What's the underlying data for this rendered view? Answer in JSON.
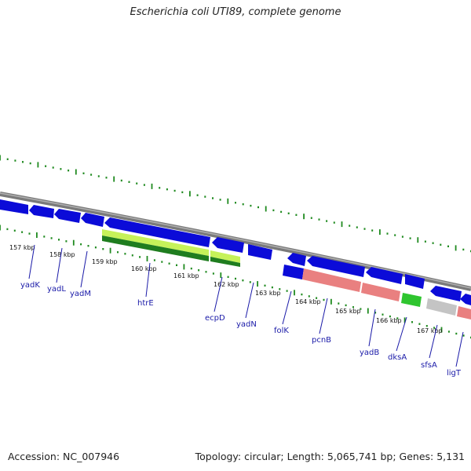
{
  "title": "Escherichia coli UTI89, complete genome",
  "accession_text": "Accession: NC_007946",
  "topology_text": "Topology: circular; Length: 5,065,741 bp; Genes: 5,131",
  "colors": {
    "backbone": "#8c8c8c",
    "tick": "#1f8a1f",
    "cds": "#0b0bd8",
    "label": "#1a1aa8",
    "gene_pink": "#e98080",
    "gene_green": "#2fc52f",
    "gene_gray": "#c4c4c4",
    "htre_light": "#9fe51f",
    "htre_dark": "#2a8a2a"
  },
  "kbp_labels": [
    "157 kbp",
    "158 kbp",
    "159 kbp",
    "160 kbp",
    "161 kbp",
    "162 kbp",
    "163 kbp",
    "164 kbp",
    "165 kbp",
    "166 kbp",
    "167 kbp"
  ],
  "genes": [
    {
      "name": "yadK"
    },
    {
      "name": "yadL"
    },
    {
      "name": "yadM"
    },
    {
      "name": "htrE"
    },
    {
      "name": "ecpD"
    },
    {
      "name": "yadN"
    },
    {
      "name": "folK"
    },
    {
      "name": "pcnB"
    },
    {
      "name": "yadB"
    },
    {
      "name": "dksA"
    },
    {
      "name": "sfsA"
    },
    {
      "name": "ligT"
    }
  ]
}
